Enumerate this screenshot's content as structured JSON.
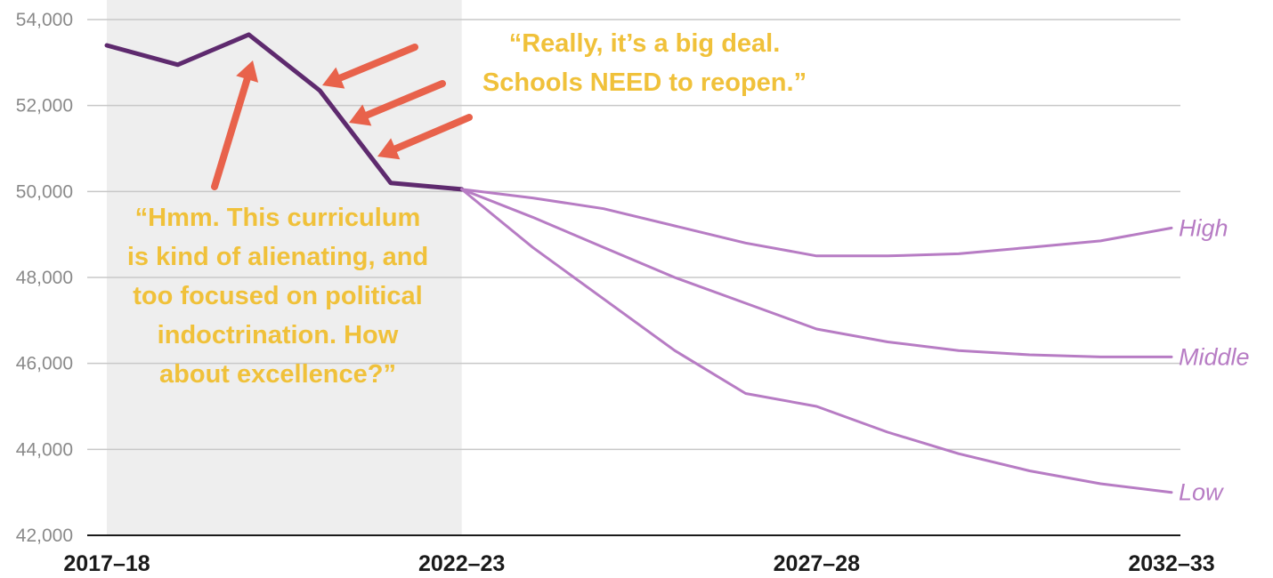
{
  "chart_data": {
    "type": "line",
    "title": "",
    "xlabel": "",
    "ylabel": "",
    "x_labels": [
      "2017–18",
      "2022–23",
      "2027–28",
      "2032–33"
    ],
    "y_ticks": [
      "42,000",
      "44,000",
      "46,000",
      "48,000",
      "50,000",
      "52,000",
      "54,000"
    ],
    "ylim": [
      42000,
      54000
    ],
    "grid": true,
    "historical_period": [
      "2017–18",
      "2022–23"
    ],
    "x": [
      "2017–18",
      "2018–19",
      "2019–20",
      "2020–21",
      "2021–22",
      "2022–23",
      "2023–24",
      "2024–25",
      "2025–26",
      "2026–27",
      "2027–28",
      "2028–29",
      "2029–30",
      "2030–31",
      "2031–32",
      "2032–33"
    ],
    "series": [
      {
        "name": "",
        "color": "#5e2a6e",
        "values": [
          53400,
          52950,
          53650,
          52350,
          50200,
          50050,
          null,
          null,
          null,
          null,
          null,
          null,
          null,
          null,
          null,
          null
        ]
      },
      {
        "name": "High",
        "color": "#b77cc4",
        "values": [
          null,
          null,
          null,
          null,
          null,
          50050,
          49850,
          49600,
          49200,
          48800,
          48500,
          48500,
          48550,
          48700,
          48850,
          49150
        ]
      },
      {
        "name": "Middle",
        "color": "#b77cc4",
        "values": [
          null,
          null,
          null,
          null,
          null,
          50050,
          49400,
          48700,
          48000,
          47400,
          46800,
          46500,
          46300,
          46200,
          46150,
          46150
        ]
      },
      {
        "name": "Low",
        "color": "#b77cc4",
        "values": [
          null,
          null,
          null,
          null,
          null,
          50050,
          48700,
          47500,
          46300,
          45300,
          45000,
          44400,
          43900,
          43500,
          43200,
          43000
        ]
      }
    ],
    "annotations": [
      {
        "lines": [
          "“Hmm. This curriculum",
          "is kind of alienating, and",
          "too focused on political",
          "indoctrination. How",
          "about excellence?”"
        ]
      },
      {
        "lines": [
          "“Really, it’s a big deal.",
          "Schools NEED to reopen.”"
        ]
      }
    ],
    "colors": {
      "historical_line": "#5e2a6e",
      "projection_line": "#b77cc4",
      "annotation_text": "#f0c13a",
      "arrow": "#e8624b",
      "shaded_region": "#eeeeee",
      "grid": "#c8c8c8"
    }
  }
}
